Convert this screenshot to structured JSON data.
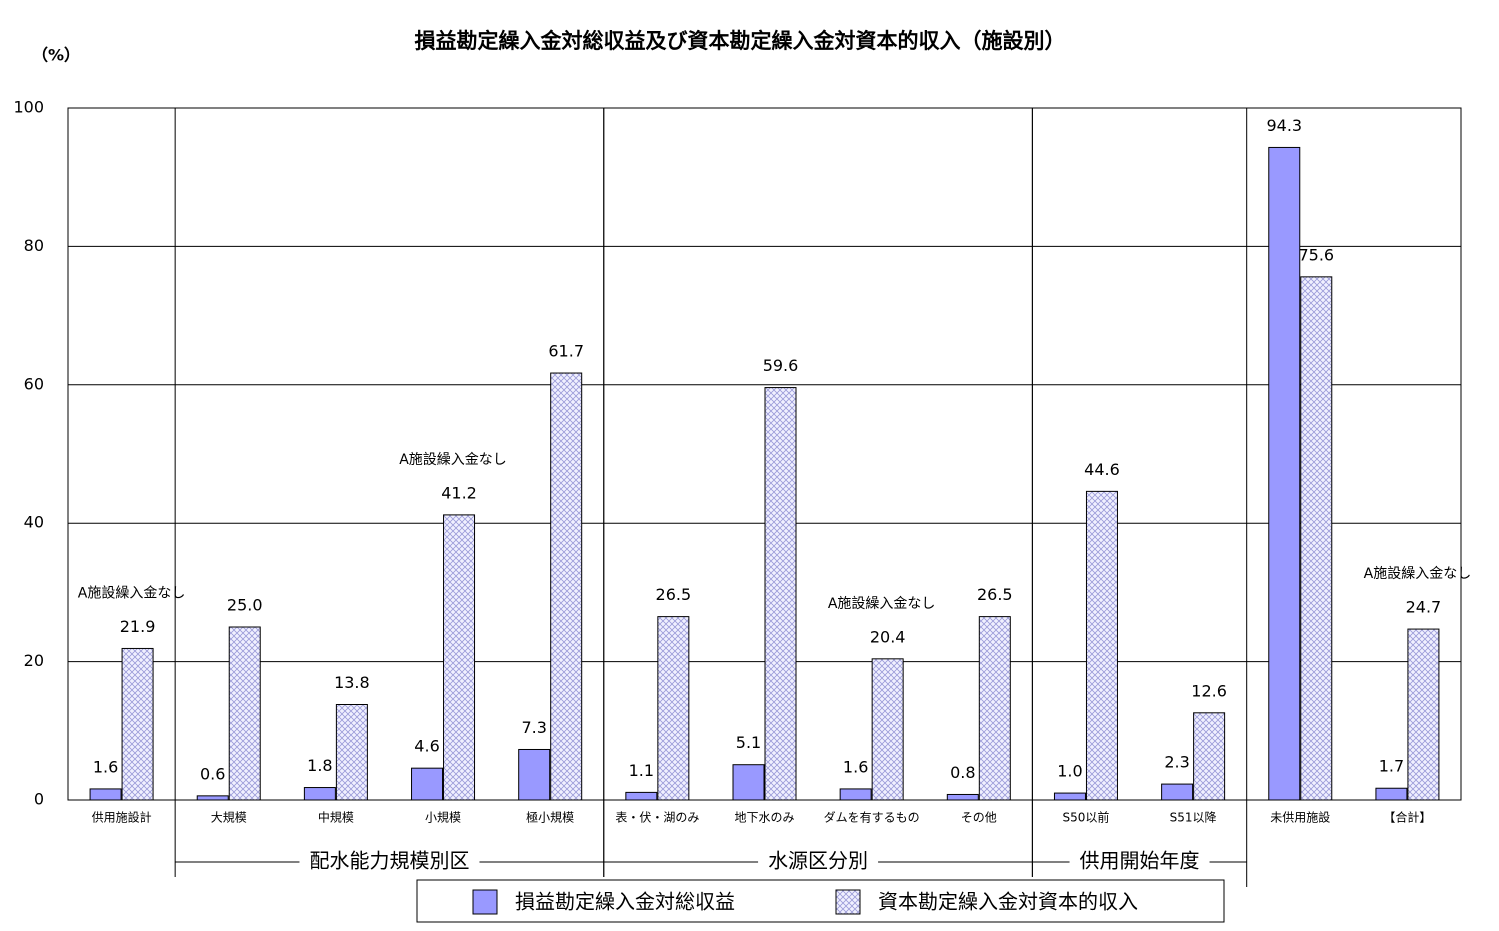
{
  "chart_data": {
    "type": "bar",
    "title": "損益勘定繰入金対総収益及び資本勘定繰入金対資本的収入（施設別）",
    "y_label": "（%）",
    "categories": [
      "供用施設計",
      "大規模",
      "中規模",
      "小規模",
      "極小規模",
      "表・伏・湖のみ",
      "地下水のみ",
      "ダムを有するもの",
      "その他",
      "S50以前",
      "S51以降",
      "未供用施設",
      "【合計】"
    ],
    "series": [
      {
        "name": "損益勘定繰入金対総収益",
        "color": "#9999ff",
        "values": [
          1.6,
          0.6,
          1.8,
          4.6,
          7.3,
          1.1,
          5.1,
          1.6,
          0.8,
          1.0,
          2.3,
          94.3,
          1.7
        ],
        "value_labels": [
          "1.6",
          "0.6",
          "1.8",
          "4.6",
          "7.3",
          "1.1",
          "5.1",
          "1.6",
          "0.8",
          "1.0",
          "2.3",
          "94.3",
          "1.7"
        ]
      },
      {
        "name": "資本勘定繰入金対資本的収入",
        "color": "#ccccff",
        "values": [
          21.9,
          25.0,
          13.8,
          41.2,
          61.7,
          26.5,
          59.6,
          20.4,
          26.5,
          44.6,
          12.6,
          75.6,
          24.7
        ],
        "value_labels": [
          "21.9",
          "25.0",
          "13.8",
          "41.2",
          "61.7",
          "26.5",
          "59.6",
          "20.4",
          "26.5",
          "44.6",
          "12.6",
          "75.6",
          "24.7"
        ]
      }
    ],
    "ylim": [
      0,
      100
    ],
    "yticks": [
      0,
      20,
      40,
      60,
      80,
      100
    ],
    "grid": true,
    "notes": [
      {
        "category": "供用施設計",
        "text": "A施設繰入金なし"
      },
      {
        "category": "小規模",
        "text": "A施設繰入金なし"
      },
      {
        "category": "ダムを有するもの",
        "text": "A施設繰入金なし"
      },
      {
        "category": "【合計】",
        "text": "A施設繰入金なし"
      }
    ],
    "groups": [
      {
        "label": "配水能力規模別区",
        "from": "大規模",
        "to": "極小規模"
      },
      {
        "label": "水源区分別",
        "from": "表・伏・湖のみ",
        "to": "その他"
      },
      {
        "label": "供用開始年度",
        "from": "S50以前",
        "to": "S51以降"
      }
    ]
  }
}
